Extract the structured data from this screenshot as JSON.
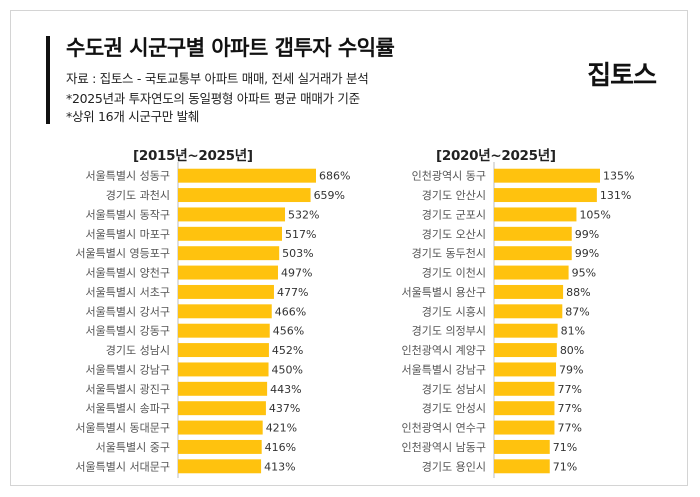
{
  "header": {
    "title": "수도권 시군구별 아파트 갭투자 수익률",
    "source": "자료 : 집토스 - 국토교통부 아파트 매매, 전세 실거래가 분석",
    "note1": "*2025년과 투자연도의 동일평형 아파트 평균 매매가 기준",
    "note2": "*상위 16개 시군구만 발췌",
    "logo": "집토스"
  },
  "colors": {
    "bar": "#FFC20E",
    "axis": "#bdbdbd",
    "label": "#555555",
    "value": "#333333"
  },
  "chart_data": [
    {
      "type": "bar",
      "orientation": "horizontal",
      "title": "[2015년~2025년]",
      "categories": [
        "서울특별시 성동구",
        "경기도 과천시",
        "서울특별시 동작구",
        "서울특별시 마포구",
        "서울특별시 영등포구",
        "서울특별시 양천구",
        "서울특별시 서초구",
        "서울특별시 강서구",
        "서울특별시 강동구",
        "경기도 성남시",
        "서울특별시 강남구",
        "서울특별시 광진구",
        "서울특별시 송파구",
        "서울특별시 동대문구",
        "서울특별시 중구",
        "서울특별시 서대문구"
      ],
      "values": [
        686,
        659,
        532,
        517,
        503,
        497,
        477,
        466,
        456,
        452,
        450,
        443,
        437,
        421,
        416,
        413
      ],
      "value_labels": [
        "686%",
        "659%",
        "532%",
        "517%",
        "503%",
        "497%",
        "477%",
        "466%",
        "456%",
        "452%",
        "450%",
        "443%",
        "437%",
        "421%",
        "416%",
        "413%"
      ],
      "xlim": [
        0,
        686
      ]
    },
    {
      "type": "bar",
      "orientation": "horizontal",
      "title": "[2020년~2025년]",
      "categories": [
        "인천광역시 동구",
        "경기도 안산시",
        "경기도 군포시",
        "경기도 오산시",
        "경기도 동두천시",
        "경기도 이천시",
        "서울특별시 용산구",
        "경기도 시흥시",
        "경기도 의정부시",
        "인천광역시 계양구",
        "서울특별시 강남구",
        "경기도 성남시",
        "경기도 안성시",
        "인천광역시 연수구",
        "인천광역시 남동구",
        "경기도 용인시"
      ],
      "values": [
        135,
        131,
        105,
        99,
        99,
        95,
        88,
        87,
        81,
        80,
        79,
        77,
        77,
        77,
        71,
        71
      ],
      "value_labels": [
        "135%",
        "131%",
        "105%",
        "99%",
        "99%",
        "95%",
        "88%",
        "87%",
        "81%",
        "80%",
        "79%",
        "77%",
        "77%",
        "77%",
        "71%",
        "71%"
      ],
      "xlim": [
        0,
        135
      ]
    }
  ]
}
